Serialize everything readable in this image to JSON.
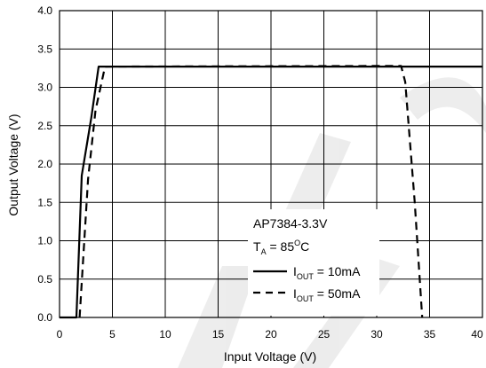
{
  "chart_data": {
    "type": "line",
    "title": "",
    "xlabel": "Input Voltage (V)",
    "ylabel": "Output Voltage (V)",
    "xlim": [
      0,
      40
    ],
    "ylim": [
      0,
      4
    ],
    "x_ticks": [
      "0",
      "5",
      "10",
      "15",
      "20",
      "25",
      "30",
      "35",
      "40"
    ],
    "y_ticks": [
      "0.0",
      "0.5",
      "1.0",
      "1.5",
      "2.0",
      "2.5",
      "3.0",
      "3.5",
      "4.0"
    ],
    "grid": true,
    "legend_position": "bottom-right",
    "annotation": {
      "device": "AP7384-3.3V",
      "condition_prefix": "T",
      "condition_sub": "A",
      "condition_mid": " = 85",
      "condition_sup": "O",
      "condition_suffix": "C"
    },
    "series": [
      {
        "name_main": "I",
        "name_sub": "OUT",
        "name_tail": " = 10mA",
        "style": "solid",
        "x": [
          0,
          1.6,
          2.1,
          3.0,
          3.7,
          40
        ],
        "y": [
          0,
          0,
          1.85,
          2.6,
          3.27,
          3.27
        ]
      },
      {
        "name_main": "I",
        "name_sub": "OUT",
        "name_tail": " = 50mA",
        "style": "dashed",
        "x": [
          1.9,
          2.7,
          3.4,
          4.3,
          32.3,
          32.7,
          33.6,
          34.3
        ],
        "y": [
          0,
          1.8,
          2.7,
          3.27,
          3.28,
          3.07,
          1.5,
          0
        ]
      }
    ]
  }
}
